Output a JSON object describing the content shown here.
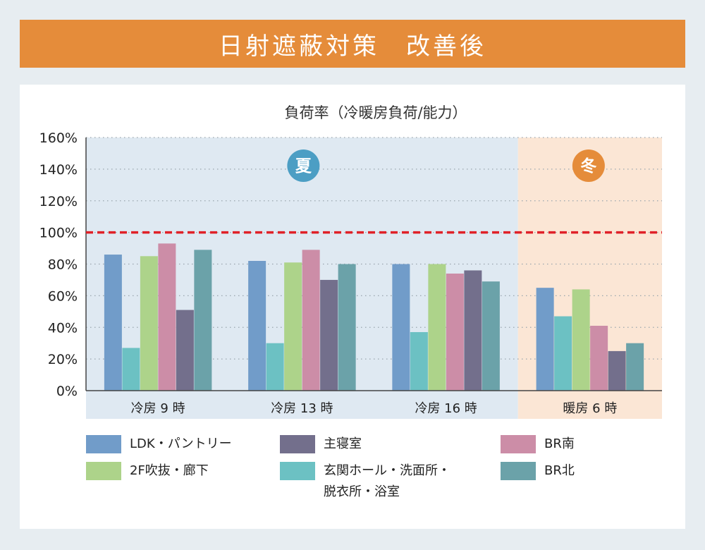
{
  "header": {
    "title": "日射遮蔽対策　改善後"
  },
  "chart_data": {
    "type": "bar",
    "title": "負荷率（冷暖房負荷/能力）",
    "ylim": [
      0,
      160
    ],
    "yticks": [
      0,
      20,
      40,
      60,
      80,
      100,
      120,
      140,
      160
    ],
    "ytick_labels": [
      "0%",
      "20%",
      "40%",
      "60%",
      "80%",
      "100%",
      "120%",
      "140%",
      "160%"
    ],
    "categories": [
      "冷房 9 時",
      "冷房 13 時",
      "冷房 16 時",
      "暖房 6 時"
    ],
    "series": [
      {
        "name": "LDK・パントリー",
        "color": "#719cc9",
        "values": [
          86,
          82,
          80,
          65
        ]
      },
      {
        "name": "玄関ホール・洗面所・脱衣所・浴室",
        "color": "#6cc1c3",
        "values": [
          27,
          30,
          37,
          47
        ]
      },
      {
        "name": "2F吹抜・廊下",
        "color": "#add38a",
        "values": [
          85,
          81,
          80,
          64
        ]
      },
      {
        "name": "BR南",
        "color": "#cc8da7",
        "values": [
          93,
          89,
          74,
          41
        ]
      },
      {
        "name": "主寝室",
        "color": "#736f8c",
        "values": [
          51,
          70,
          76,
          25
        ]
      },
      {
        "name": "BR北",
        "color": "#6ba2a9",
        "values": [
          89,
          80,
          69,
          30
        ]
      }
    ],
    "reference_line": {
      "value": 100,
      "color": "#e02128",
      "style": "dashed"
    },
    "regions": [
      {
        "label": "夏",
        "categories": [
          0,
          1,
          2
        ],
        "color": "#dfe9f2",
        "badge_color": "#4c9ec4"
      },
      {
        "label": "冬",
        "categories": [
          3
        ],
        "color": "#fbe6d5",
        "badge_color": "#e58c3a"
      }
    ],
    "grid": "dotted-horizontal",
    "legend_position": "bottom"
  },
  "legend": [
    {
      "label": "LDK・パントリー",
      "color": "#719cc9",
      "lines": [
        "LDK・パントリー"
      ]
    },
    {
      "label": "主寝室",
      "color": "#736f8c",
      "lines": [
        "主寝室"
      ]
    },
    {
      "label": "BR南",
      "color": "#cc8da7",
      "lines": [
        "BR南"
      ]
    },
    {
      "label": "2F吹抜・廊下",
      "color": "#add38a",
      "lines": [
        "2F吹抜・廊下"
      ]
    },
    {
      "label": "玄関ホール・洗面所・脱衣所・浴室",
      "color": "#6cc1c3",
      "lines": [
        "玄関ホール・洗面所・",
        "脱衣所・浴室"
      ]
    },
    {
      "label": "BR北",
      "color": "#6ba2a9",
      "lines": [
        "BR北"
      ]
    }
  ]
}
